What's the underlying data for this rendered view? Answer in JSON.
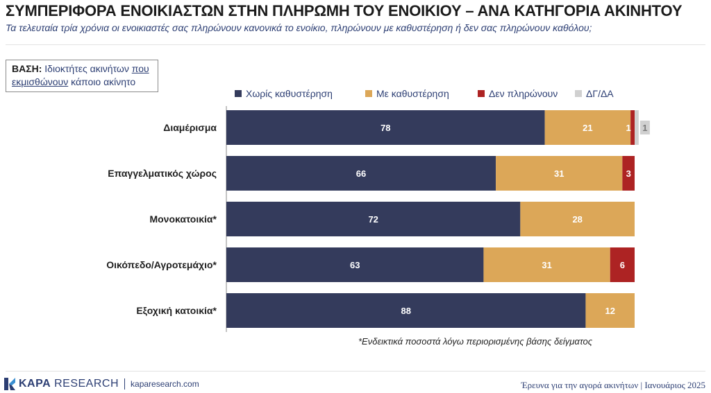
{
  "header": {
    "title": "ΣΥΜΠΕΡΙΦΟΡΑ ΕΝΟΙΚΙΑΣΤΩΝ ΣΤΗΝ ΠΛΗΡΩΜΗ ΤΟΥ ΕΝΟΙΚΙΟΥ – ΑΝΑ ΚΑΤΗΓΟΡΙΑ ΑΚΙΝΗΤΟΥ",
    "subtitle": "Τα τελευταία τρία χρόνια οι ενοικιαστές σας πληρώνουν κανονικά το ενοίκιο, πληρώνουν με καθυστέρηση ή δεν σας πληρώνουν καθόλου;"
  },
  "base": {
    "label": "ΒΑΣΗ:",
    "text_before": "Ιδιοκτήτες ακινήτων",
    "underlined": "που εκμισθώνουν",
    "text_after": "κάποιο ακίνητο"
  },
  "note": "*Ενδεικτικά ποσοστά λόγω περιορισμένης βάσης δείγματος",
  "footer": {
    "brand_bold": "KAPA",
    "brand_rest": "RESEARCH",
    "site": "kaparesearch.com",
    "survey": "Έρευνα για την αγορά ακινήτων",
    "separator": "|",
    "date": "Ιανουάριος 2025"
  },
  "chart_data": {
    "type": "bar",
    "orientation": "horizontal",
    "stacked": true,
    "legend_position": "top",
    "grid": false,
    "xlim": [
      0,
      100
    ],
    "categories": [
      "Διαμέρισμα",
      "Επαγγελματικός χώρος",
      "Μονοκατοικία*",
      "Οικόπεδο/Αγροτεμάχιο*",
      "Εξοχική κατοικία*"
    ],
    "series": [
      {
        "name": "Χωρίς καθυστέρηση",
        "color": "#343b5c",
        "values": [
          78,
          66,
          72,
          63,
          88
        ]
      },
      {
        "name": "Με καθυστέρηση",
        "color": "#dca758",
        "values": [
          21,
          31,
          28,
          31,
          12
        ]
      },
      {
        "name": "Δεν πληρώνουν",
        "color": "#ad2323",
        "values": [
          1,
          3,
          0,
          6,
          0
        ]
      },
      {
        "name": "ΔΓ/ΔΑ",
        "color": "#d0d0d0",
        "values": [
          1,
          0,
          0,
          0,
          0
        ]
      }
    ]
  }
}
